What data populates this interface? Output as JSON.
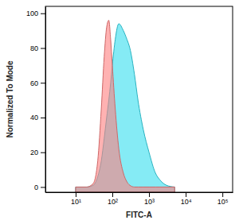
{
  "chart_data": {
    "type": "area",
    "x_label": "FITC-A",
    "y_label": "Normalized To Mode",
    "log": "x",
    "x": [
      10,
      20,
      30,
      40,
      50,
      60,
      70,
      80,
      90,
      100,
      120,
      150,
      200,
      250,
      300,
      400,
      500,
      700,
      1000,
      1500,
      2000,
      3000,
      5000
    ],
    "series": [
      {
        "color": "#33ddee",
        "values": [
          0,
          0,
          1,
          6,
          15,
          28,
          40,
          50,
          60,
          70,
          85,
          94,
          90,
          85,
          80,
          65,
          50,
          33,
          20,
          8,
          4,
          1,
          0
        ]
      },
      {
        "color": "#ff7f7f",
        "values": [
          0,
          0,
          2,
          15,
          45,
          75,
          92,
          96,
          85,
          70,
          45,
          22,
          8,
          3,
          1,
          0,
          0,
          0,
          0,
          0,
          0,
          0,
          0
        ]
      }
    ],
    "xlim": [
      1.5,
      190000
    ],
    "xticks": [
      {
        "value": 10,
        "label": "10¹"
      },
      {
        "value": 100,
        "label": "10²"
      },
      {
        "value": 1000,
        "label": "10³"
      },
      {
        "value": 10000,
        "label": "10⁴"
      },
      {
        "value": 100000,
        "label": "10⁵"
      }
    ],
    "ylim": [
      -3,
      104
    ],
    "yticks": [
      0,
      20,
      40,
      60,
      80,
      100
    ]
  }
}
